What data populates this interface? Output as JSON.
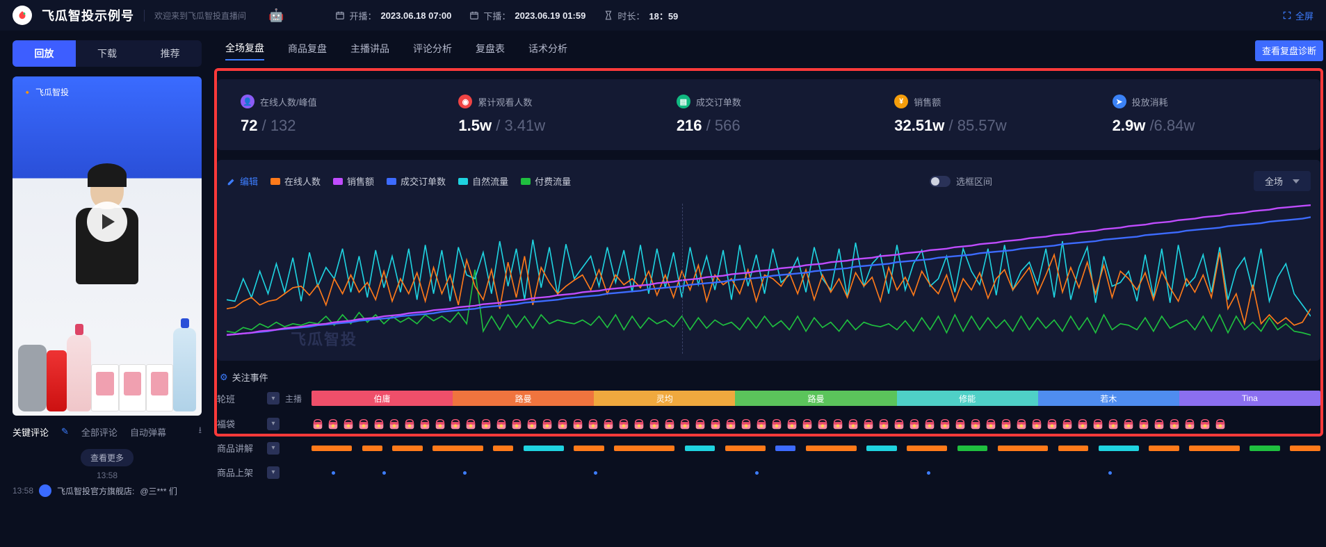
{
  "header": {
    "brand": "飞瓜智投示例号",
    "welcome": "欢迎来到飞瓜智投直播间",
    "start_label": "开播：",
    "start_time": "2023.06.18 07:00",
    "end_label": "下播：",
    "end_time": "2023.06.19 01:59",
    "duration_label": "时长：",
    "duration": "18：59",
    "fullscreen": "全屏"
  },
  "left": {
    "tabs": [
      "回放",
      "下载",
      "推荐"
    ],
    "thumb_brand": "飞瓜智投",
    "comment_tabs": [
      "关键评论",
      "全部评论",
      "自动弹幕"
    ],
    "more": "查看更多",
    "timestamp": "13:58",
    "cm_time": "13:58",
    "cm_author": "飞瓜智投官方旗舰店:",
    "cm_text": "@三*** 们"
  },
  "nav": {
    "tabs": [
      "全场复盘",
      "商品复盘",
      "主播讲品",
      "评论分析",
      "复盘表",
      "话术分析"
    ],
    "diag_btn": "查看复盘诊断"
  },
  "kpi": [
    {
      "icon_bg": "#8b5cf6",
      "icon": "👤",
      "label": "在线人数/峰值",
      "value": "72",
      "sub": " / 132"
    },
    {
      "icon_bg": "#ef4444",
      "icon": "◉",
      "label": "累计观看人数",
      "value": "1.5w",
      "sub": " / 3.41w"
    },
    {
      "icon_bg": "#10b981",
      "icon": "▤",
      "label": "成交订单数",
      "value": "216",
      "sub": " / 566"
    },
    {
      "icon_bg": "#f59e0b",
      "icon": "¥",
      "label": "销售额",
      "value": "32.51w",
      "sub": " / 85.57w"
    },
    {
      "icon_bg": "#3b82f6",
      "icon": "➤",
      "label": "投放消耗",
      "value": "2.9w",
      "sub": " /6.84w"
    }
  ],
  "chart": {
    "edit": "编辑",
    "legends": [
      {
        "color": "#ff7a1a",
        "label": "在线人数"
      },
      {
        "color": "#c04cff",
        "label": "销售额"
      },
      {
        "color": "#3d6bff",
        "label": "成交订单数"
      },
      {
        "color": "#1fd3e0",
        "label": "自然流量"
      },
      {
        "color": "#1fbf3f",
        "label": "付费流量"
      }
    ],
    "toggle_label": "选框区间",
    "scope": "全场",
    "watermark": "飞瓜智投",
    "series": {
      "orange": {
        "color": "#ff7a1a",
        "y": [
          140,
          138,
          130,
          125,
          135,
          130,
          128,
          120,
          112,
          110,
          122,
          108,
          135,
          100,
          120,
          95,
          118,
          105,
          128,
          90,
          130,
          100,
          120,
          92,
          130,
          85,
          120,
          95,
          135,
          75,
          110,
          128,
          88,
          140,
          78,
          125,
          70,
          135,
          85,
          105,
          120,
          110,
          102,
          95,
          115,
          88,
          120,
          95,
          108,
          100,
          112,
          90,
          122,
          95,
          125,
          90,
          115,
          82,
          130,
          95,
          108,
          100,
          120,
          88,
          130,
          95,
          100,
          110,
          92,
          120,
          88,
          128,
          95,
          118,
          100,
          125,
          92,
          110,
          98,
          130,
          85,
          115,
          98,
          122,
          90,
          108,
          120,
          95,
          130,
          100,
          115,
          92,
          126,
          100,
          88,
          115,
          100,
          85,
          120,
          95,
          68,
          118,
          85,
          112,
          78,
          120,
          82,
          125,
          90,
          100,
          115,
          92,
          128,
          90,
          112,
          130,
          100,
          118,
          95,
          125,
          65,
          140,
          120,
          160,
          108,
          160,
          148,
          160,
          152,
          162,
          158,
          140
        ]
      },
      "cyan": {
        "color": "#1fd3e0",
        "y": [
          128,
          130,
          100,
          125,
          90,
          120,
          80,
          118,
          72,
          130,
          65,
          110,
          85,
          100,
          60,
          118,
          70,
          125,
          62,
          112,
          70,
          118,
          60,
          128,
          55,
          120,
          62,
          130,
          58,
          95,
          100,
          65,
          120,
          50,
          110,
          60,
          128,
          48,
          112,
          58,
          122,
          54,
          100,
          85,
          70,
          110,
          58,
          105,
          62,
          118,
          55,
          120,
          60,
          112,
          65,
          125,
          58,
          108,
          70,
          115,
          62,
          128,
          55,
          110,
          68,
          120,
          60,
          105,
          95,
          72,
          118,
          58,
          100,
          115,
          60,
          125,
          52,
          110,
          80,
          68,
          120,
          55,
          115,
          80,
          62,
          110,
          100,
          70,
          118,
          60,
          90,
          108,
          60,
          122,
          55,
          115,
          90,
          78,
          108,
          60,
          125,
          50,
          128,
          85,
          58,
          132,
          70,
          110,
          105,
          90,
          130,
          68,
          125,
          60,
          132,
          55,
          110,
          98,
          68,
          118,
          58,
          128,
          88,
          72,
          116,
          60,
          130,
          98,
          80,
          120,
          135,
          150
        ]
      },
      "green": {
        "color": "#1fbf3f",
        "y": [
          170,
          172,
          165,
          168,
          160,
          165,
          158,
          164,
          160,
          162,
          158,
          160,
          150,
          162,
          148,
          160,
          145,
          158,
          148,
          160,
          150,
          158,
          152,
          160,
          148,
          156,
          150,
          158,
          145,
          160,
          88,
          170,
          150,
          168,
          148,
          165,
          150,
          166,
          148,
          160,
          155,
          158,
          160,
          155,
          162,
          150,
          165,
          148,
          168,
          150,
          166,
          152,
          160,
          155,
          164,
          150,
          168,
          152,
          166,
          155,
          162,
          158,
          168,
          152,
          166,
          150,
          164,
          156,
          168,
          150,
          170,
          152,
          165,
          158,
          170,
          155,
          168,
          158,
          162,
          164,
          160,
          168,
          156,
          170,
          152,
          168,
          150,
          172,
          148,
          170,
          150,
          168,
          152,
          166,
          155,
          170,
          150,
          168,
          152,
          166,
          155,
          170,
          150,
          168,
          152,
          172,
          148,
          168,
          160,
          162,
          168,
          152,
          170,
          150,
          166,
          160,
          155,
          168,
          150,
          170,
          148,
          172,
          150,
          168,
          158,
          170,
          152,
          168,
          160,
          170,
          172,
          175
        ]
      },
      "purple": {
        "color": "#c04cff",
        "y": [
          175,
          174,
          173,
          172,
          170,
          169,
          168,
          166,
          165,
          164,
          162,
          161,
          160,
          158,
          157,
          156,
          154,
          153,
          152,
          150,
          149,
          148,
          146,
          145,
          144,
          142,
          141,
          140,
          138,
          137,
          136,
          134,
          133,
          132,
          130,
          129,
          128,
          126,
          125,
          124,
          122,
          121,
          120,
          118,
          117,
          116,
          114,
          113,
          112,
          110,
          109,
          108,
          106,
          105,
          104,
          102,
          101,
          100,
          98,
          97,
          96,
          94,
          93,
          92,
          90,
          89,
          88,
          86,
          85,
          84,
          82,
          81,
          80,
          78,
          77,
          76,
          74,
          73,
          72,
          70,
          69,
          68,
          66,
          65,
          64,
          62,
          61,
          60,
          58,
          57,
          56,
          54,
          53,
          52,
          50,
          49,
          48,
          46,
          45,
          44,
          42,
          41,
          40,
          38,
          37,
          36,
          34,
          33,
          32,
          30,
          29,
          28,
          26,
          25,
          24,
          22,
          21,
          20,
          18,
          17,
          16,
          14,
          13,
          12,
          10,
          9,
          8,
          6,
          5,
          4,
          3,
          2
        ]
      },
      "blue": {
        "color": "#3d6bff",
        "y": [
          175,
          174,
          173,
          172,
          171,
          170,
          168,
          167,
          166,
          165,
          164,
          162,
          161,
          160,
          159,
          158,
          156,
          155,
          154,
          153,
          152,
          150,
          149,
          148,
          147,
          146,
          144,
          143,
          142,
          141,
          140,
          138,
          137,
          136,
          135,
          134,
          132,
          131,
          130,
          129,
          128,
          126,
          125,
          124,
          123,
          122,
          120,
          119,
          118,
          117,
          116,
          114,
          113,
          112,
          111,
          110,
          108,
          107,
          106,
          105,
          104,
          102,
          101,
          100,
          99,
          98,
          96,
          95,
          94,
          93,
          92,
          90,
          89,
          88,
          87,
          86,
          84,
          83,
          82,
          81,
          80,
          78,
          77,
          76,
          75,
          74,
          72,
          71,
          70,
          69,
          68,
          66,
          65,
          64,
          63,
          62,
          60,
          59,
          58,
          57,
          56,
          54,
          53,
          52,
          51,
          50,
          48,
          47,
          46,
          45,
          44,
          42,
          41,
          40,
          39,
          38,
          36,
          35,
          34,
          33,
          32,
          30,
          29,
          28,
          27,
          26,
          24,
          23,
          22,
          21,
          20,
          18
        ]
      }
    }
  },
  "timeline": {
    "focus": "关注事件",
    "shift_label": "轮班",
    "shift_sub": "主播",
    "shifts": [
      {
        "name": "伯庸",
        "color": "#ef4f6a",
        "pct": 14
      },
      {
        "name": "路曼",
        "color": "#f0743e",
        "pct": 14
      },
      {
        "name": "灵均",
        "color": "#f0a93e",
        "pct": 14
      },
      {
        "name": "路曼",
        "color": "#5bc45b",
        "pct": 16
      },
      {
        "name": "修能",
        "color": "#4fd0c7",
        "pct": 14
      },
      {
        "name": "若木",
        "color": "#4f8df0",
        "pct": 14
      },
      {
        "name": "Tina",
        "color": "#8b6ff0",
        "pct": 14
      }
    ],
    "bag_label": "福袋",
    "bag_count": 60,
    "explain_label": "商品讲解",
    "explain_segments": [
      {
        "l": 0,
        "w": 4,
        "c": "#ff7a1a"
      },
      {
        "l": 5,
        "w": 2,
        "c": "#ff7a1a"
      },
      {
        "l": 8,
        "w": 3,
        "c": "#ff7a1a"
      },
      {
        "l": 12,
        "w": 5,
        "c": "#ff7a1a"
      },
      {
        "l": 18,
        "w": 2,
        "c": "#ff7a1a"
      },
      {
        "l": 21,
        "w": 4,
        "c": "#1fd3e0"
      },
      {
        "l": 26,
        "w": 3,
        "c": "#ff7a1a"
      },
      {
        "l": 30,
        "w": 6,
        "c": "#ff7a1a"
      },
      {
        "l": 37,
        "w": 3,
        "c": "#1fd3e0"
      },
      {
        "l": 41,
        "w": 4,
        "c": "#ff7a1a"
      },
      {
        "l": 46,
        "w": 2,
        "c": "#3d6bff"
      },
      {
        "l": 49,
        "w": 5,
        "c": "#ff7a1a"
      },
      {
        "l": 55,
        "w": 3,
        "c": "#1fd3e0"
      },
      {
        "l": 59,
        "w": 4,
        "c": "#ff7a1a"
      },
      {
        "l": 64,
        "w": 3,
        "c": "#1fbf3f"
      },
      {
        "l": 68,
        "w": 5,
        "c": "#ff7a1a"
      },
      {
        "l": 74,
        "w": 3,
        "c": "#ff7a1a"
      },
      {
        "l": 78,
        "w": 4,
        "c": "#1fd3e0"
      },
      {
        "l": 83,
        "w": 3,
        "c": "#ff7a1a"
      },
      {
        "l": 87,
        "w": 5,
        "c": "#ff7a1a"
      },
      {
        "l": 93,
        "w": 3,
        "c": "#1fbf3f"
      },
      {
        "l": 97,
        "w": 3,
        "c": "#ff7a1a"
      }
    ],
    "shelf_label": "商品上架",
    "shelf_dots": [
      2,
      7,
      15,
      28,
      44,
      61,
      79
    ]
  }
}
